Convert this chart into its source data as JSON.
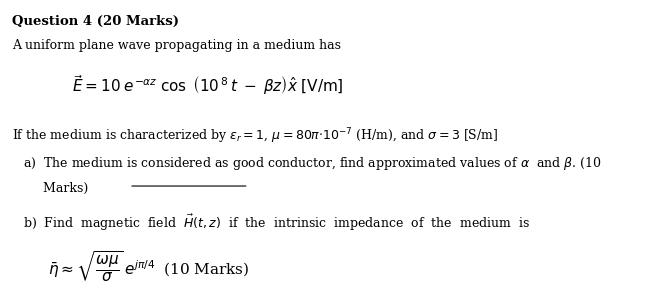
{
  "bg_color": "#ffffff",
  "figsize": [
    6.45,
    3.03
  ],
  "dpi": 100,
  "title_text": "Question 4 (20 Marks)",
  "intro_text": "A uniform plane wave propagating in a medium has",
  "equation_E": "$\\vec{E}  =  10\\; e^{-\\alpha z}\\; \\cos\\;  \\left(10^{\\,8}\\, t\\; -\\; \\beta z \\right)\\hat{x}\\; \\mathrm{[V/m]}$",
  "medium_chars": "If the medium is characterized by $\\varepsilon_r = 1$, $\\mu= 80\\pi{\\cdot}10^{-7}$ (H/m), and $\\sigma = 3$ [S/m]",
  "part_a": "a)  The medium is considered as good conductor, find approximated values of $\\alpha$  and $\\beta$. (10",
  "part_a2": "     Marks)",
  "part_b": "b)  Find  magnetic  field  $\\vec{H}(t,z)$  if  the  intrinsic  impedance  of  the  medium  is",
  "eta_eq": "$\\bar{\\eta} \\approx \\sqrt{\\dfrac{\\omega\\mu}{\\sigma}}\\,e^{j\\pi/4}\\;$ (10 Marks)"
}
